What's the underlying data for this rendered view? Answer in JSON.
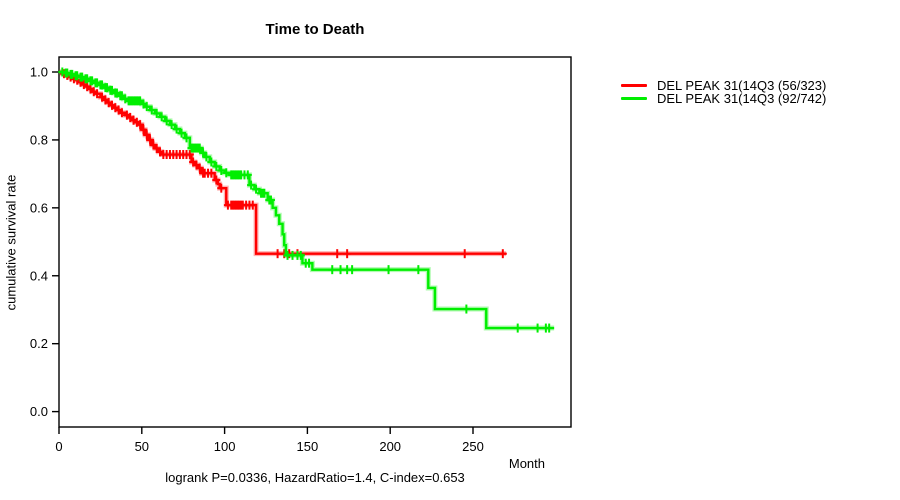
{
  "footer": "logrank P=0.0336, HazardRatio=1.4, C-index=0.653",
  "chart_data": {
    "type": "line",
    "subtype": "kaplan-meier-step-survival",
    "title": "Time to Death",
    "xlabel": "Month",
    "ylabel": "cumulative survival rate",
    "xlim": [
      0,
      309
    ],
    "ylim": [
      0,
      1.04
    ],
    "x_ticks": [
      0,
      50,
      100,
      150,
      200,
      250
    ],
    "y_ticks": [
      0.0,
      0.2,
      0.4,
      0.6,
      0.8,
      1.0
    ],
    "grid": false,
    "legend_position": "right-outside",
    "censor_marker": "+",
    "series": [
      {
        "name": "DEL PEAK 31(14Q3 (56/323)",
        "color": "#ff0000",
        "end_time": 270,
        "steps": [
          [
            0,
            1.0
          ],
          [
            2,
            0.995
          ],
          [
            4,
            0.99
          ],
          [
            6,
            0.985
          ],
          [
            8,
            0.98
          ],
          [
            10,
            0.976
          ],
          [
            12,
            0.97
          ],
          [
            14,
            0.963
          ],
          [
            16,
            0.957
          ],
          [
            18,
            0.95
          ],
          [
            20,
            0.942
          ],
          [
            22,
            0.936
          ],
          [
            25,
            0.926
          ],
          [
            27,
            0.918
          ],
          [
            29,
            0.91
          ],
          [
            31,
            0.902
          ],
          [
            33,
            0.895
          ],
          [
            35,
            0.888
          ],
          [
            37,
            0.88
          ],
          [
            40,
            0.873
          ],
          [
            42,
            0.866
          ],
          [
            44,
            0.858
          ],
          [
            46,
            0.852
          ],
          [
            48,
            0.845
          ],
          [
            50,
            0.83
          ],
          [
            52,
            0.815
          ],
          [
            54,
            0.8
          ],
          [
            56,
            0.785
          ],
          [
            58,
            0.775
          ],
          [
            60,
            0.765
          ],
          [
            62,
            0.757
          ],
          [
            80,
            0.735
          ],
          [
            82,
            0.726
          ],
          [
            84,
            0.717
          ],
          [
            86,
            0.702
          ],
          [
            94,
            0.682
          ],
          [
            96,
            0.67
          ],
          [
            97,
            0.658
          ],
          [
            101,
            0.608
          ],
          [
            119,
            0.465
          ]
        ],
        "censor_times": [
          3,
          5,
          7,
          9,
          11,
          13,
          15,
          17,
          19,
          21,
          23,
          26,
          28,
          30,
          32,
          34,
          36,
          38,
          41,
          43,
          45,
          47,
          49,
          51,
          53,
          55,
          57,
          59,
          61,
          63,
          65,
          67,
          69,
          71,
          73,
          75,
          77,
          79,
          81,
          83,
          85,
          87,
          88,
          90,
          92,
          95,
          98,
          102,
          104,
          105,
          106,
          107,
          108,
          109,
          110,
          111,
          113,
          115,
          117,
          132,
          136,
          139,
          144,
          168,
          174,
          245,
          268
        ]
      },
      {
        "name": "DEL PEAK 31(14Q3 (92/742)",
        "color": "#00ee00",
        "end_time": 299,
        "steps": [
          [
            0,
            1.0
          ],
          [
            3,
            0.997
          ],
          [
            6,
            0.993
          ],
          [
            9,
            0.989
          ],
          [
            12,
            0.985
          ],
          [
            15,
            0.98
          ],
          [
            18,
            0.974
          ],
          [
            21,
            0.968
          ],
          [
            24,
            0.962
          ],
          [
            27,
            0.954
          ],
          [
            30,
            0.946
          ],
          [
            33,
            0.938
          ],
          [
            36,
            0.93
          ],
          [
            39,
            0.921
          ],
          [
            41,
            0.915
          ],
          [
            50,
            0.906
          ],
          [
            52,
            0.898
          ],
          [
            55,
            0.888
          ],
          [
            58,
            0.878
          ],
          [
            61,
            0.868
          ],
          [
            64,
            0.856
          ],
          [
            67,
            0.845
          ],
          [
            70,
            0.832
          ],
          [
            73,
            0.82
          ],
          [
            76,
            0.806
          ],
          [
            79,
            0.776
          ],
          [
            86,
            0.762
          ],
          [
            88,
            0.75
          ],
          [
            91,
            0.735
          ],
          [
            94,
            0.722
          ],
          [
            97,
            0.71
          ],
          [
            100,
            0.703
          ],
          [
            103,
            0.697
          ],
          [
            115,
            0.667
          ],
          [
            118,
            0.655
          ],
          [
            121,
            0.643
          ],
          [
            126,
            0.623
          ],
          [
            129,
            0.6
          ],
          [
            131,
            0.578
          ],
          [
            133,
            0.553
          ],
          [
            135,
            0.522
          ],
          [
            136,
            0.49
          ],
          [
            137,
            0.46
          ],
          [
            147,
            0.437
          ],
          [
            153,
            0.418
          ],
          [
            223,
            0.364
          ],
          [
            227,
            0.302
          ],
          [
            258,
            0.246
          ]
        ],
        "censor_times": [
          2,
          4,
          5,
          7,
          8,
          10,
          11,
          13,
          14,
          16,
          17,
          19,
          20,
          22,
          23,
          25,
          26,
          28,
          29,
          31,
          32,
          34,
          35,
          37,
          38,
          40,
          42,
          43,
          44,
          45,
          46,
          47,
          48,
          49,
          51,
          53,
          56,
          59,
          62,
          65,
          68,
          71,
          74,
          77,
          80,
          81,
          82,
          83,
          84,
          85,
          87,
          89,
          92,
          95,
          98,
          101,
          104,
          105,
          106,
          107,
          108,
          109,
          110,
          112,
          114,
          116,
          119,
          122,
          123,
          124,
          127,
          128,
          138,
          141,
          144,
          146,
          149,
          151,
          165,
          170,
          174,
          177,
          199,
          217,
          246,
          277,
          289,
          294,
          296
        ]
      }
    ]
  }
}
